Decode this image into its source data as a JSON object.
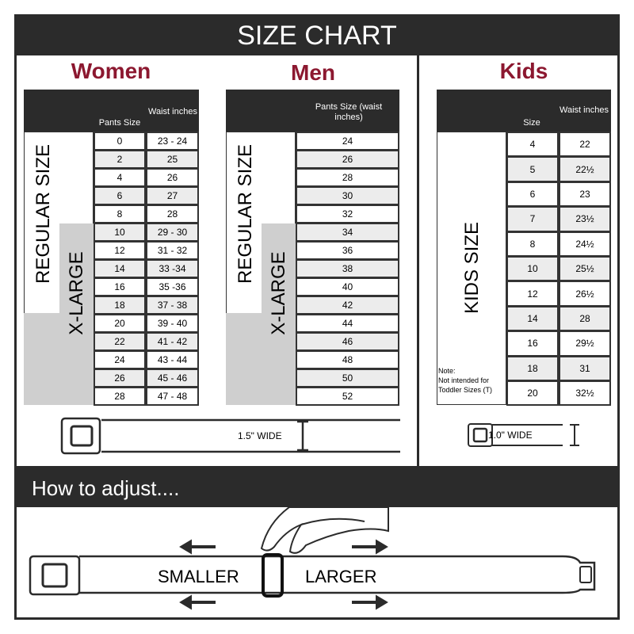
{
  "title": "SIZE CHART",
  "women": {
    "heading": "Women",
    "col1": "Pants Size",
    "col2": "Waist inches",
    "regular_label": "REGULAR SIZE",
    "xlarge_label": "X-LARGE",
    "rows": [
      [
        "0",
        "23 - 24"
      ],
      [
        "2",
        "25"
      ],
      [
        "4",
        "26"
      ],
      [
        "6",
        "27"
      ],
      [
        "8",
        "28"
      ],
      [
        "10",
        "29 - 30"
      ],
      [
        "12",
        "31 - 32"
      ],
      [
        "14",
        "33 -34"
      ],
      [
        "16",
        "35 -36"
      ],
      [
        "18",
        "37 - 38"
      ],
      [
        "20",
        "39 - 40"
      ],
      [
        "22",
        "41 - 42"
      ],
      [
        "24",
        "43 - 44"
      ],
      [
        "26",
        "45 - 46"
      ],
      [
        "28",
        "47 - 48"
      ]
    ]
  },
  "men": {
    "heading": "Men",
    "col1": "Pants Size (waist inches)",
    "regular_label": "REGULAR SIZE",
    "xlarge_label": "X-LARGE",
    "rows": [
      "24",
      "26",
      "28",
      "30",
      "32",
      "34",
      "36",
      "38",
      "40",
      "42",
      "44",
      "46",
      "48",
      "50",
      "52"
    ]
  },
  "kids": {
    "heading": "Kids",
    "col1": "Size",
    "col2": "Waist inches",
    "label": "KIDS SIZE",
    "note": "Note:",
    "note2": "Not intended for",
    "note3": "Toddler Sizes (T)",
    "rows": [
      [
        "4",
        "22"
      ],
      [
        "5",
        "22½"
      ],
      [
        "6",
        "23"
      ],
      [
        "7",
        "23½"
      ],
      [
        "8",
        "24½"
      ],
      [
        "10",
        "25½"
      ],
      [
        "12",
        "26½"
      ],
      [
        "14",
        "28"
      ],
      [
        "16",
        "29½"
      ],
      [
        "18",
        "31"
      ],
      [
        "20",
        "32½"
      ]
    ]
  },
  "belt_adult_width": "1.5\" WIDE",
  "belt_kids_width": "1.0\" WIDE",
  "adjust": {
    "heading": "How to adjust....",
    "smaller": "SMALLER",
    "larger": "LARGER"
  },
  "colors": {
    "dark": "#2b2b2b",
    "accent": "#8c1830",
    "xlarge_gray": "#cfcfcf"
  }
}
